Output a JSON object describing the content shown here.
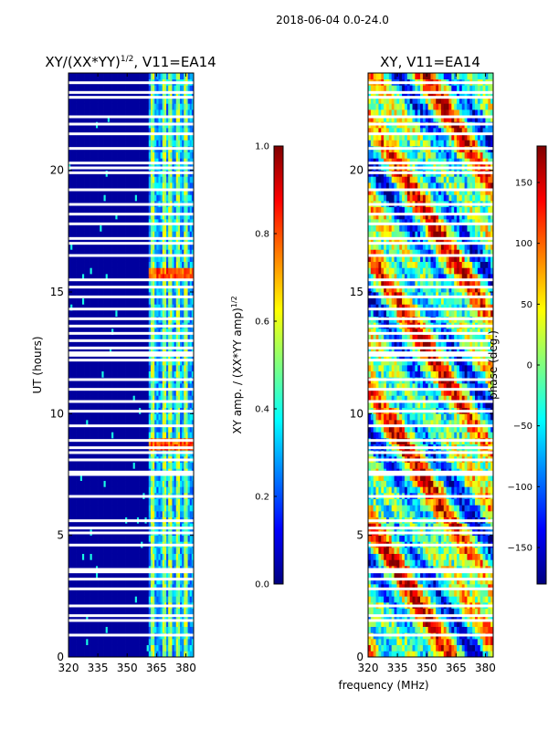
{
  "suptitle": "2018-06-04 0.0-24.0",
  "colors": {
    "jet": [
      "#00007f",
      "#0000ff",
      "#007fff",
      "#00ffff",
      "#7fff7f",
      "#ffff00",
      "#ff7f00",
      "#ff0000",
      "#7f0000"
    ],
    "gap": "#ffffff"
  },
  "chart_data": [
    {
      "type": "heatmap",
      "title_main": "XY/(XX*YY)",
      "title_sup": "1/2",
      "title_tail": ", V11=EA14",
      "xlabel": "",
      "ylabel": "UT (hours)",
      "xlim": [
        320,
        384
      ],
      "ylim": [
        0,
        24
      ],
      "xticks": [
        "320",
        "335",
        "350",
        "365",
        "380"
      ],
      "xtick_values": [
        320,
        335,
        350,
        365,
        380
      ],
      "yticks": [
        "0",
        "5",
        "10",
        "15",
        "20"
      ],
      "ytick_values": [
        0,
        5,
        10,
        15,
        20
      ],
      "colorbar": {
        "label": "XY amp. / (XX*YY amp)",
        "label_sup": "1/2",
        "range": [
          0.0,
          1.0
        ],
        "ticks": [
          "0.0",
          "0.2",
          "0.4",
          "0.6",
          "0.8",
          "1.0"
        ],
        "tick_values": [
          0.0,
          0.2,
          0.4,
          0.6,
          0.8,
          1.0
        ]
      },
      "active_band_mhz": [
        361,
        384
      ],
      "bright_channels_mhz": [
        363,
        369,
        372,
        376,
        380
      ],
      "gap_hours": [
        0.9,
        1.5,
        1.7,
        2.1,
        2.8,
        3.2,
        3.5,
        3.6,
        4.6,
        5.1,
        5.3,
        5.6,
        6.6,
        7.5,
        7.6,
        8.1,
        8.4,
        8.6,
        8.9,
        9.5,
        10.1,
        10.5,
        11.0,
        11.4,
        12.2,
        12.4,
        12.5,
        12.7,
        13.0,
        13.3,
        13.6,
        13.9,
        14.3,
        14.8,
        15.2,
        15.5,
        16.5,
        17.0,
        17.2,
        17.8,
        18.2,
        18.6,
        19.2,
        19.9,
        20.1,
        20.3,
        20.9,
        21.5,
        21.9,
        22.2,
        23.0,
        23.2,
        23.6
      ]
    },
    {
      "type": "heatmap",
      "title_main": "XY, V11=EA14",
      "xlabel": "frequency (MHz)",
      "ylabel": "",
      "xlim": [
        320,
        384
      ],
      "ylim": [
        0,
        24
      ],
      "xticks": [
        "320",
        "335",
        "350",
        "365",
        "380"
      ],
      "xtick_values": [
        320,
        335,
        350,
        365,
        380
      ],
      "yticks": [
        "0",
        "5",
        "10",
        "15",
        "20"
      ],
      "ytick_values": [
        0,
        5,
        10,
        15,
        20
      ],
      "colorbar": {
        "label": "phase (deg.)",
        "range": [
          -180,
          180
        ],
        "ticks": [
          "−150",
          "−100",
          "−50",
          "0",
          "50",
          "100",
          "150"
        ],
        "tick_values": [
          -150,
          -100,
          -50,
          0,
          50,
          100,
          150
        ]
      },
      "gap_hours": [
        0.9,
        1.5,
        1.7,
        2.1,
        2.8,
        3.2,
        3.5,
        3.6,
        4.6,
        5.1,
        5.3,
        5.6,
        6.6,
        7.5,
        7.6,
        8.1,
        8.4,
        8.6,
        8.9,
        9.5,
        10.1,
        10.5,
        11.0,
        11.4,
        12.2,
        12.4,
        12.5,
        12.7,
        13.0,
        13.3,
        13.6,
        13.9,
        14.3,
        14.8,
        15.2,
        15.5,
        16.5,
        17.0,
        17.2,
        17.8,
        18.2,
        18.6,
        19.2,
        19.9,
        20.1,
        20.3,
        20.9,
        21.5,
        21.9,
        22.2,
        23.0,
        23.2,
        23.6
      ]
    }
  ]
}
